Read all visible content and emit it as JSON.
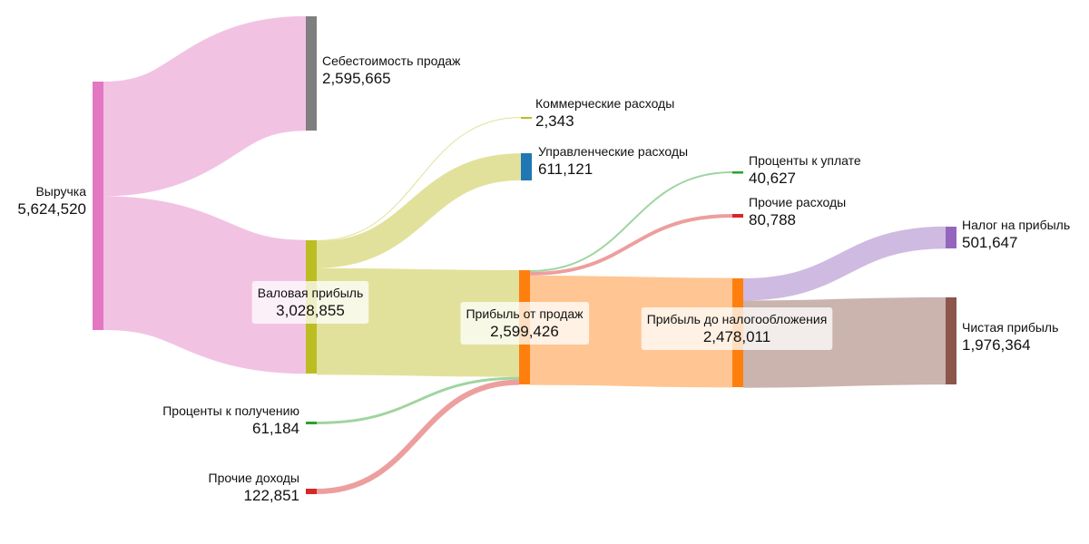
{
  "chart_data": {
    "type": "sankey",
    "title": "",
    "nodes": [
      {
        "id": "revenue",
        "label": "Выручка",
        "value": "5,624,520",
        "color": "#e377c2"
      },
      {
        "id": "cogs",
        "label": "Себестоимость продаж",
        "value": "2,595,665",
        "color": "#7f7f7f"
      },
      {
        "id": "gross",
        "label": "Валовая прибыль",
        "value": "3,028,855",
        "color": "#bcbd22"
      },
      {
        "id": "selling",
        "label": "Коммерческие расходы",
        "value": "2,343",
        "color": "#bcbd22"
      },
      {
        "id": "admin",
        "label": "Управленческие расходы",
        "value": "611,121",
        "color": "#1f77b4"
      },
      {
        "id": "operating",
        "label": "Прибыль от продаж",
        "value": "2,599,426",
        "color": "#ff7f0e"
      },
      {
        "id": "int_paid",
        "label": "Проценты к уплате",
        "value": "40,627",
        "color": "#2ca02c"
      },
      {
        "id": "other_exp",
        "label": "Прочие расходы",
        "value": "80,788",
        "color": "#d62728"
      },
      {
        "id": "pretax",
        "label": "Прибыль до налогообложения",
        "value": "2,478,011",
        "color": "#ff7f0e"
      },
      {
        "id": "tax",
        "label": "Налог на прибыль",
        "value": "501,647",
        "color": "#9467bd"
      },
      {
        "id": "net",
        "label": "Чистая прибыль",
        "value": "1,976,364",
        "color": "#8c564b"
      },
      {
        "id": "int_recv",
        "label": "Проценты к получению",
        "value": "61,184",
        "color": "#2ca02c"
      },
      {
        "id": "other_inc",
        "label": "Прочие доходы",
        "value": "122,851",
        "color": "#d62728"
      }
    ],
    "links": [
      {
        "source": "revenue",
        "target": "cogs",
        "value": 2595665,
        "color": "#e377c2"
      },
      {
        "source": "revenue",
        "target": "gross",
        "value": 3028855,
        "color": "#e377c2"
      },
      {
        "source": "gross",
        "target": "selling",
        "value": 2343,
        "color": "#bcbd22"
      },
      {
        "source": "gross",
        "target": "admin",
        "value": 611121,
        "color": "#bcbd22"
      },
      {
        "source": "gross",
        "target": "operating",
        "value": 2415391,
        "color": "#bcbd22"
      },
      {
        "source": "int_recv",
        "target": "operating",
        "value": 61184,
        "color": "#2ca02c"
      },
      {
        "source": "other_inc",
        "target": "operating",
        "value": 122851,
        "color": "#d62728"
      },
      {
        "source": "operating",
        "target": "int_paid",
        "value": 40627,
        "color": "#2ca02c"
      },
      {
        "source": "operating",
        "target": "other_exp",
        "value": 80788,
        "color": "#d62728"
      },
      {
        "source": "operating",
        "target": "pretax",
        "value": 2478011,
        "color": "#ff7f0e"
      },
      {
        "source": "pretax",
        "target": "tax",
        "value": 501647,
        "color": "#9467bd"
      },
      {
        "source": "pretax",
        "target": "net",
        "value": 1976364,
        "color": "#8c564b"
      }
    ]
  }
}
